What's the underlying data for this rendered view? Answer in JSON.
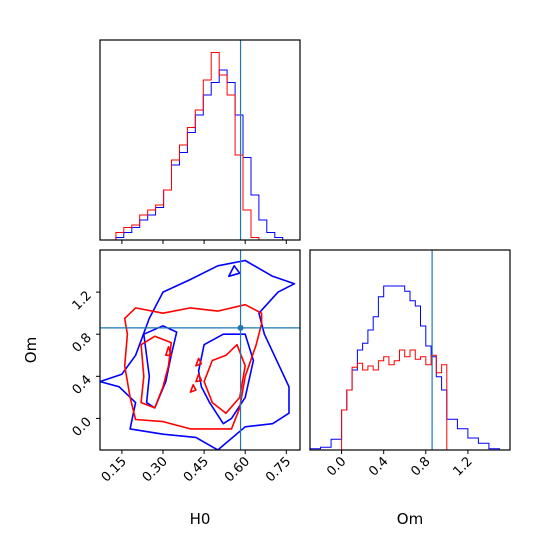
{
  "colors": {
    "series_a": "#0000ff",
    "series_b": "#ff0000",
    "truth": "#1f77b4"
  },
  "chart_data": [
    {
      "type": "histogram",
      "panel": "H0 marginal",
      "xlim": [
        0.07,
        0.8
      ],
      "grid": false,
      "truth": 0.583,
      "bin_edges": [
        0.07,
        0.099,
        0.128,
        0.157,
        0.186,
        0.215,
        0.244,
        0.273,
        0.302,
        0.331,
        0.36,
        0.389,
        0.418,
        0.447,
        0.476,
        0.505,
        0.534,
        0.563,
        0.592,
        0.621,
        0.65,
        0.679,
        0.708,
        0.737,
        0.766,
        0.795
      ],
      "series": [
        {
          "color": "blue",
          "values": [
            0,
            0,
            0.01,
            0.03,
            0.05,
            0.08,
            0.1,
            0.13,
            0.2,
            0.3,
            0.35,
            0.43,
            0.5,
            0.58,
            0.63,
            0.68,
            0.63,
            0.5,
            0.33,
            0.18,
            0.08,
            0.03,
            0.01,
            0,
            0
          ]
        },
        {
          "color": "red",
          "values": [
            0,
            0,
            0.03,
            0.05,
            0.06,
            0.1,
            0.12,
            0.14,
            0.2,
            0.32,
            0.38,
            0.45,
            0.52,
            0.64,
            0.75,
            0.66,
            0.58,
            0.34,
            0.12,
            0.01,
            0,
            0,
            0,
            0,
            0
          ]
        }
      ]
    },
    {
      "type": "contour",
      "panel": "H0 vs Om",
      "xlabel": "H0",
      "ylabel": "Om",
      "xlim": [
        0.07,
        0.8
      ],
      "ylim": [
        -0.3,
        1.6
      ],
      "xticks": [
        "0.15",
        "0.30",
        "0.45",
        "0.60",
        "0.75"
      ],
      "xtick_values": [
        0.15,
        0.3,
        0.45,
        0.6,
        0.75
      ],
      "yticks": [
        "0.0",
        "0.4",
        "0.8",
        "1.2"
      ],
      "ytick_values": [
        0.0,
        0.4,
        0.8,
        1.2
      ],
      "truth": {
        "x": 0.583,
        "y": 0.86
      },
      "series": [
        {
          "color": "blue",
          "contours": [
            [
              [
                0.07,
                0.35
              ],
              [
                0.15,
                0.42
              ],
              [
                0.2,
                0.6
              ],
              [
                0.25,
                0.95
              ],
              [
                0.3,
                1.2
              ],
              [
                0.4,
                1.32
              ],
              [
                0.5,
                1.45
              ],
              [
                0.6,
                1.5
              ],
              [
                0.7,
                1.35
              ],
              [
                0.78,
                1.28
              ],
              [
                0.72,
                1.2
              ],
              [
                0.65,
                1.0
              ],
              [
                0.67,
                0.8
              ],
              [
                0.76,
                0.3
              ],
              [
                0.76,
                0.05
              ],
              [
                0.7,
                -0.05
              ],
              [
                0.6,
                -0.08
              ],
              [
                0.5,
                -0.3
              ],
              [
                0.42,
                -0.18
              ],
              [
                0.3,
                -0.15
              ],
              [
                0.18,
                -0.1
              ],
              [
                0.2,
                0.15
              ],
              [
                0.14,
                0.3
              ],
              [
                0.07,
                0.35
              ]
            ],
            [
              [
                0.23,
                0.8
              ],
              [
                0.3,
                0.88
              ],
              [
                0.35,
                0.82
              ],
              [
                0.33,
                0.6
              ],
              [
                0.31,
                0.35
              ],
              [
                0.27,
                0.1
              ],
              [
                0.24,
                0.15
              ],
              [
                0.25,
                0.4
              ],
              [
                0.23,
                0.8
              ]
            ],
            [
              [
                0.43,
                0.45
              ],
              [
                0.45,
                0.7
              ],
              [
                0.52,
                0.8
              ],
              [
                0.6,
                0.8
              ],
              [
                0.63,
                0.55
              ],
              [
                0.6,
                0.2
              ],
              [
                0.55,
                0.0
              ],
              [
                0.52,
                -0.05
              ],
              [
                0.47,
                0.15
              ],
              [
                0.44,
                0.3
              ],
              [
                0.43,
                0.45
              ]
            ],
            [
              [
                0.54,
                1.35
              ],
              [
                0.56,
                1.45
              ],
              [
                0.58,
                1.38
              ],
              [
                0.54,
                1.35
              ]
            ]
          ]
        },
        {
          "color": "red",
          "contours": [
            [
              [
                0.16,
                0.95
              ],
              [
                0.2,
                1.05
              ],
              [
                0.3,
                1.0
              ],
              [
                0.4,
                1.05
              ],
              [
                0.5,
                1.02
              ],
              [
                0.6,
                1.08
              ],
              [
                0.66,
                1.0
              ],
              [
                0.66,
                0.9
              ],
              [
                0.64,
                0.7
              ],
              [
                0.6,
                0.4
              ],
              [
                0.58,
                0.1
              ],
              [
                0.55,
                -0.1
              ],
              [
                0.4,
                -0.1
              ],
              [
                0.3,
                -0.03
              ],
              [
                0.2,
                -0.01
              ],
              [
                0.18,
                0.2
              ],
              [
                0.16,
                0.5
              ],
              [
                0.17,
                0.8
              ],
              [
                0.16,
                0.95
              ]
            ],
            [
              [
                0.22,
                0.7
              ],
              [
                0.27,
                0.78
              ],
              [
                0.33,
                0.72
              ],
              [
                0.32,
                0.5
              ],
              [
                0.3,
                0.3
              ],
              [
                0.27,
                0.1
              ],
              [
                0.22,
                0.15
              ],
              [
                0.23,
                0.4
              ],
              [
                0.22,
                0.7
              ]
            ],
            [
              [
                0.45,
                0.35
              ],
              [
                0.48,
                0.55
              ],
              [
                0.53,
                0.6
              ],
              [
                0.57,
                0.7
              ],
              [
                0.6,
                0.5
              ],
              [
                0.58,
                0.2
              ],
              [
                0.53,
                0.05
              ],
              [
                0.48,
                0.15
              ],
              [
                0.45,
                0.35
              ]
            ],
            [
              [
                0.31,
                0.6
              ],
              [
                0.32,
                0.68
              ],
              [
                0.33,
                0.6
              ],
              [
                0.31,
                0.6
              ]
            ],
            [
              [
                0.42,
                0.5
              ],
              [
                0.43,
                0.57
              ],
              [
                0.44,
                0.52
              ],
              [
                0.42,
                0.5
              ]
            ],
            [
              [
                0.4,
                0.25
              ],
              [
                0.41,
                0.32
              ],
              [
                0.42,
                0.27
              ],
              [
                0.4,
                0.25
              ]
            ],
            [
              [
                0.42,
                0.35
              ],
              [
                0.43,
                0.42
              ],
              [
                0.44,
                0.36
              ],
              [
                0.42,
                0.35
              ]
            ]
          ]
        }
      ]
    },
    {
      "type": "histogram",
      "panel": "Om marginal",
      "xlabel": "Om",
      "xlim": [
        -0.3,
        1.6
      ],
      "grid": false,
      "xticks": [
        "0.0",
        "0.4",
        "0.8",
        "1.2"
      ],
      "xtick_values": [
        0.0,
        0.4,
        0.8,
        1.2
      ],
      "truth": 0.86,
      "bin_edges": [
        -0.3,
        -0.2,
        -0.1,
        0.0,
        0.05,
        0.1,
        0.15,
        0.2,
        0.25,
        0.3,
        0.35,
        0.4,
        0.45,
        0.5,
        0.55,
        0.6,
        0.65,
        0.7,
        0.75,
        0.8,
        0.85,
        0.9,
        0.95,
        1.0,
        1.1,
        1.2,
        1.3,
        1.4,
        1.5,
        1.6
      ],
      "series": [
        {
          "color": "blue",
          "values": [
            0.01,
            0.02,
            0.08,
            0.3,
            0.45,
            0.6,
            0.75,
            0.8,
            0.9,
            1.0,
            1.15,
            1.23,
            1.23,
            1.23,
            1.23,
            1.19,
            1.12,
            1.08,
            0.93,
            0.78,
            0.7,
            0.55,
            0.45,
            0.23,
            0.16,
            0.09,
            0.05,
            0.01,
            0
          ]
        },
        {
          "color": "red",
          "values": [
            0,
            0,
            0,
            0.3,
            0.45,
            0.62,
            0.65,
            0.6,
            0.63,
            0.6,
            0.67,
            0.7,
            0.64,
            0.67,
            0.75,
            0.7,
            0.75,
            0.68,
            0.7,
            0.64,
            0.71,
            0.58,
            0.64,
            0,
            0,
            0,
            0,
            0,
            0
          ]
        }
      ]
    }
  ]
}
